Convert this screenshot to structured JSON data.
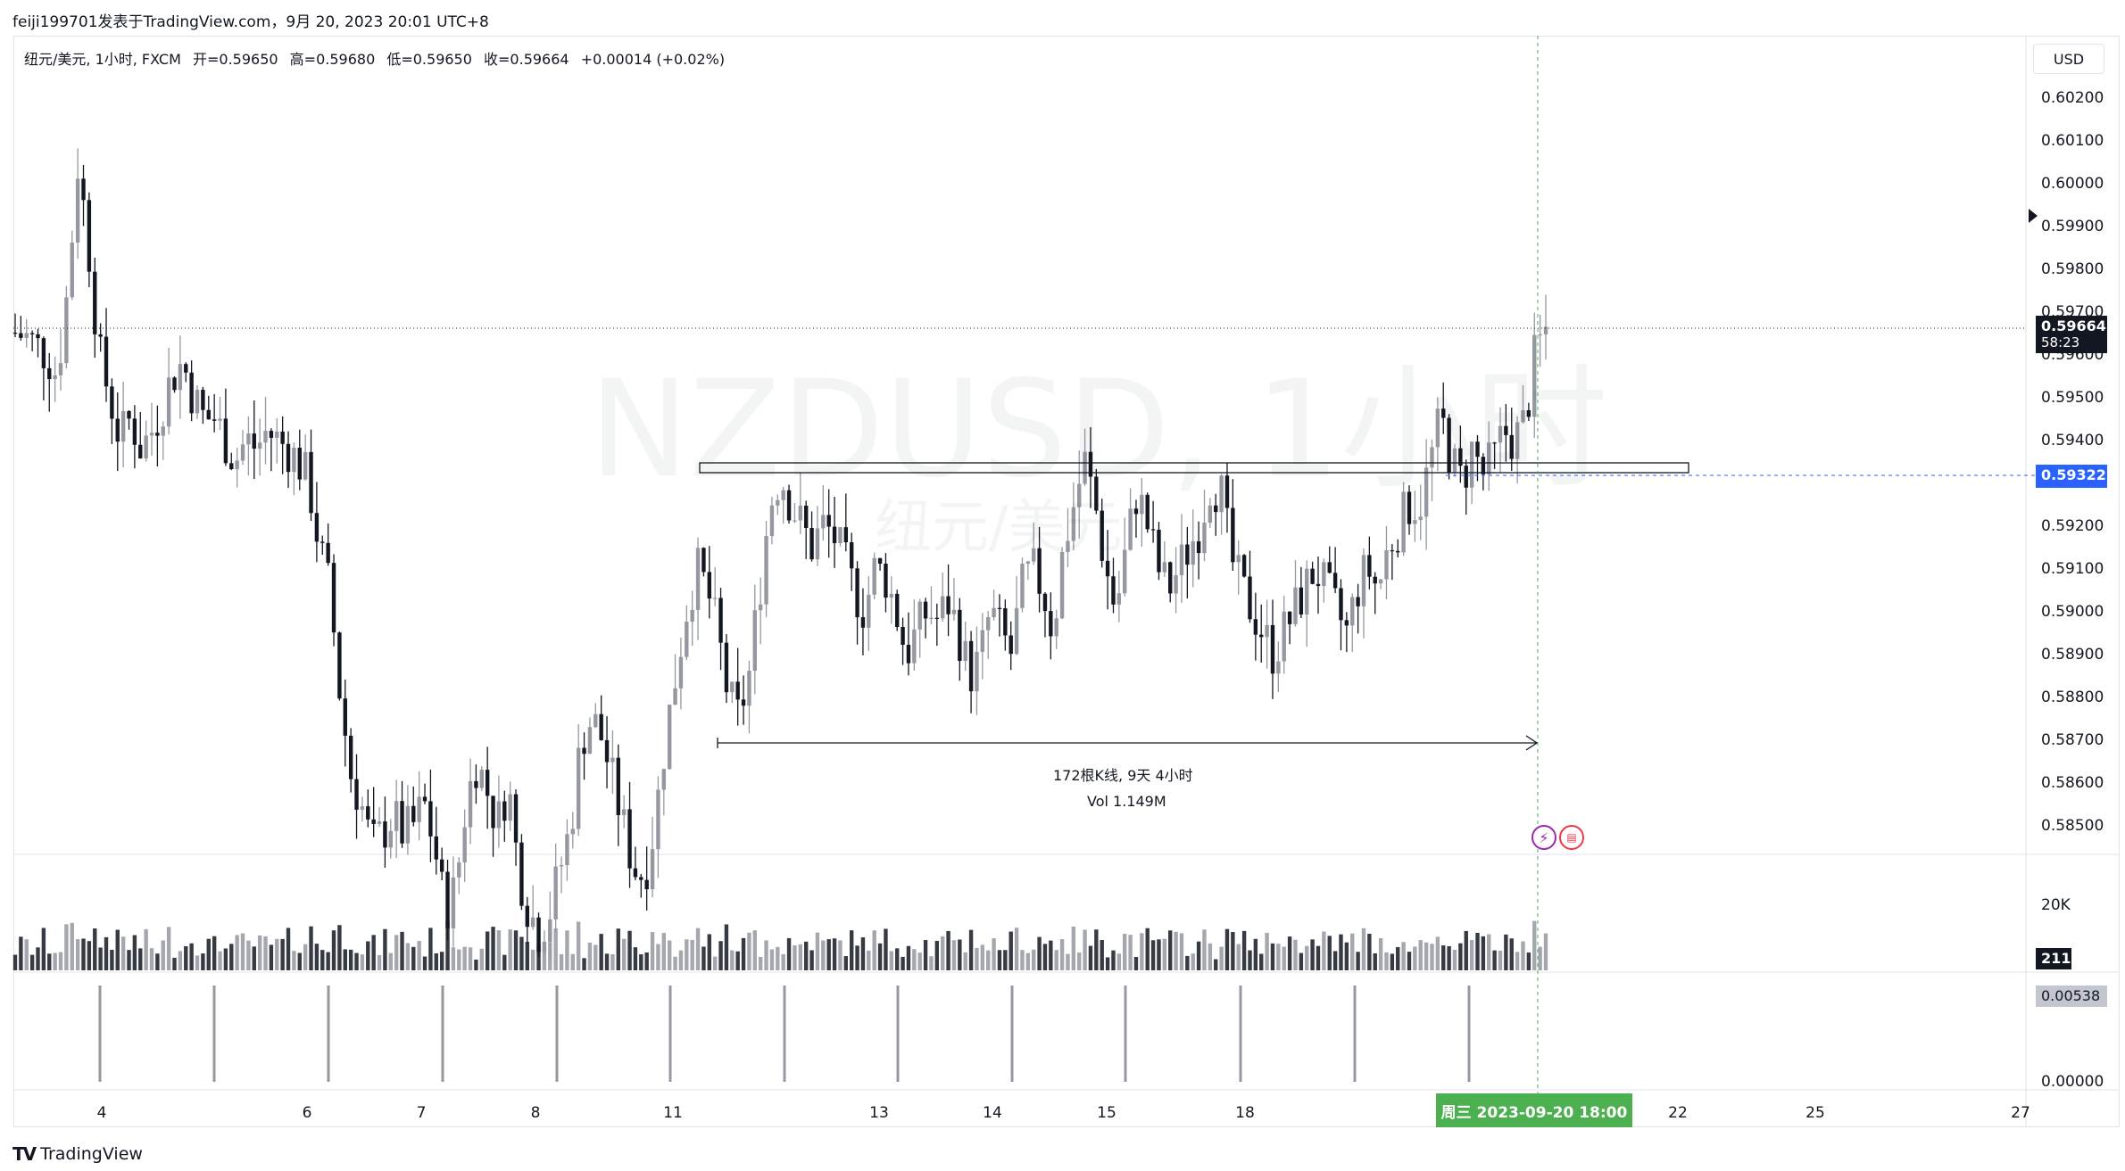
{
  "header": {
    "text": "feiji199701发表于TradingView.com，9月 20, 2023 20:01 UTC+8"
  },
  "legend": {
    "symbol": "纽元/美元, 1小时, FXCM",
    "open": "开=0.59650",
    "high": "高=0.59680",
    "low": "低=0.59650",
    "close": "收=0.59664",
    "change": "+0.00014 (+0.02%)"
  },
  "watermark": {
    "main": "NZDUSD, 1小时",
    "sub": "纽元/美元"
  },
  "currency": "USD",
  "price_axis": [
    "0.60200",
    "0.60100",
    "0.60000",
    "0.59900",
    "0.59800",
    "0.59700",
    "0.59600",
    "0.59500",
    "0.59400",
    "0.59300",
    "0.59200",
    "0.59100",
    "0.59000",
    "0.58900",
    "0.58800",
    "0.58700",
    "0.58600",
    "0.58500"
  ],
  "last_price": {
    "value": "0.59664",
    "countdown": "58:23"
  },
  "level_price": "0.59322",
  "volume_axis": "20K",
  "volume_last": "211",
  "osc_axis": [
    "0.00538",
    "0.00000"
  ],
  "time_axis": [
    "4",
    "6",
    "7",
    "8",
    "11",
    "13",
    "14",
    "15",
    "18",
    "22",
    "25",
    "27"
  ],
  "crosshair_time": "周三 2023-09-20   18:00",
  "measure": {
    "bars_label": "172根K线, 9天 4小时",
    "vol_label": "Vol 1.149M"
  },
  "footer": {
    "brand": "TradingView"
  },
  "colors": {
    "up": "#9598a1",
    "down": "#131722",
    "level": "#2962ff",
    "crosshair": "#4caf50"
  },
  "chart_data": {
    "type": "candlestick",
    "symbol": "NZDUSD",
    "timeframe": "1小时",
    "x_ticks": [
      "4",
      "6",
      "7",
      "8",
      "11",
      "13",
      "14",
      "15",
      "18",
      "22",
      "25",
      "27"
    ],
    "ylim": [
      0.5845,
      0.6025
    ],
    "close_path": [
      [
        0.5965,
        0.5964,
        0.5962,
        0.596,
        0.5955,
        0.5975,
        0.6005,
        0.5985,
        0.596,
        0.595
      ],
      [
        0.594,
        0.5945,
        0.5938,
        0.5942,
        0.5948,
        0.5955,
        0.5958,
        0.595,
        0.5945,
        0.5945
      ],
      [
        0.594,
        0.5935,
        0.594,
        0.5938,
        0.5942,
        0.594,
        0.5938,
        0.5935,
        0.593,
        0.5915
      ],
      [
        0.5905,
        0.588,
        0.5862,
        0.5855,
        0.5845,
        0.5848,
        0.5852,
        0.5848,
        0.585,
        0.5855
      ],
      [
        0.5845,
        0.583,
        0.5835,
        0.5855,
        0.5865,
        0.5858,
        0.585,
        0.586,
        0.584,
        0.583
      ],
      [
        0.5825,
        0.583,
        0.584,
        0.585,
        0.587,
        0.5875,
        0.587,
        0.586,
        0.585,
        0.584
      ],
      [
        0.5838,
        0.585,
        0.587,
        0.5885,
        0.59,
        0.591,
        0.5905,
        0.5895,
        0.588,
        0.5875
      ],
      [
        0.5885,
        0.5905,
        0.5925,
        0.5932,
        0.5925,
        0.592,
        0.5915,
        0.592,
        0.5918,
        0.5912
      ],
      [
        0.5905,
        0.59,
        0.591,
        0.5908,
        0.59,
        0.589,
        0.5895,
        0.59,
        0.5898,
        0.5902
      ],
      [
        0.5895,
        0.5885,
        0.5888,
        0.59,
        0.5895,
        0.589,
        0.5905,
        0.591,
        0.5905,
        0.5895
      ],
      [
        0.5915,
        0.5925,
        0.5935,
        0.5925,
        0.591,
        0.59,
        0.5915,
        0.5928,
        0.592,
        0.591
      ],
      [
        0.5905,
        0.591,
        0.5915,
        0.592,
        0.593,
        0.5928,
        0.5912,
        0.5905,
        0.59,
        0.5895
      ],
      [
        0.589,
        0.5895,
        0.59,
        0.5905,
        0.591,
        0.5905,
        0.59,
        0.5895,
        0.5905,
        0.591
      ],
      [
        0.5905,
        0.5915,
        0.592,
        0.5925,
        0.5925,
        0.5935,
        0.5945,
        0.5935,
        0.593,
        0.5938
      ],
      [
        0.5932,
        0.5935,
        0.5942,
        0.594,
        0.5944,
        0.596,
        0.5966
      ]
    ]
  }
}
